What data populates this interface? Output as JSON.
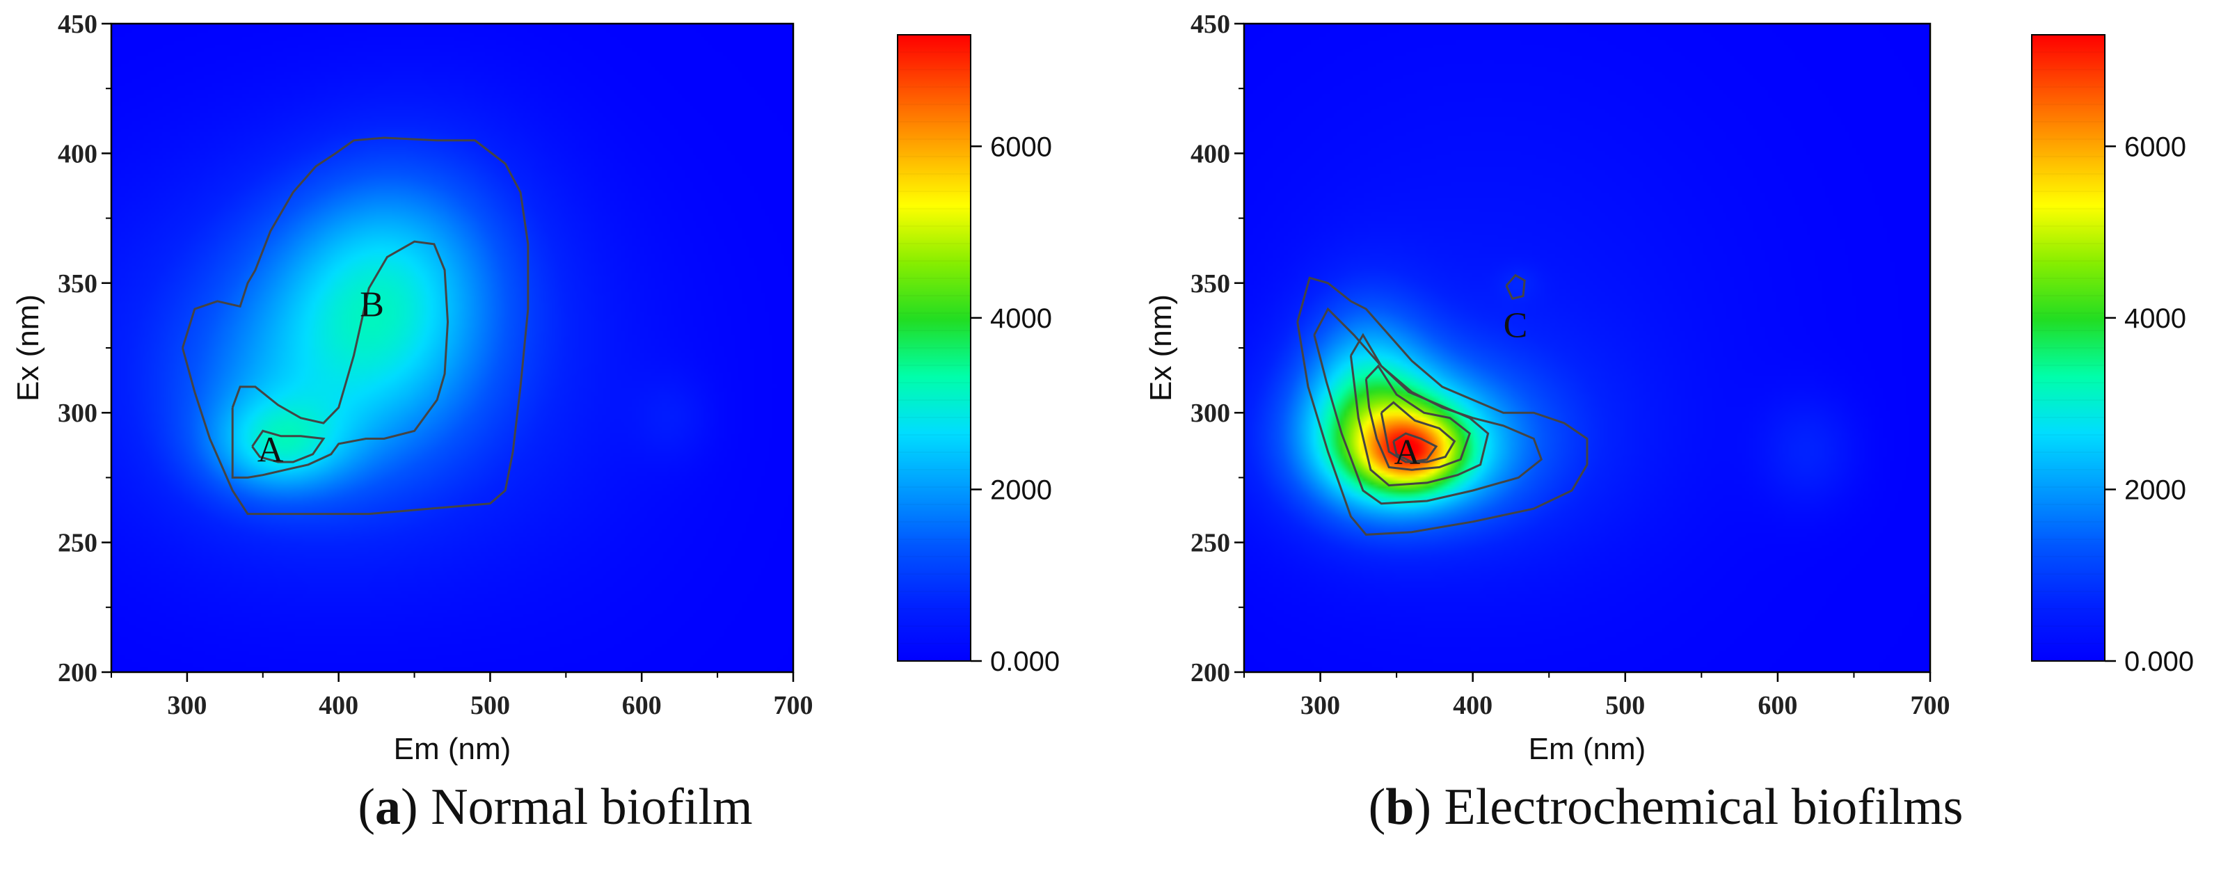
{
  "colors": {
    "scale": [
      "#0000ff",
      "#0022ff",
      "#0055ff",
      "#0099ff",
      "#00ddff",
      "#00ffaa",
      "#22dd22",
      "#88ee00",
      "#ffff00",
      "#ffaa00",
      "#ff5500",
      "#ff0000"
    ],
    "contour": "#444444",
    "frame": "#000000"
  },
  "chart_data": [
    {
      "type": "heatmap",
      "panel_letter": "a",
      "caption_text": "Normal biofilm",
      "xlabel": "Em (nm)",
      "ylabel": "Ex (nm)",
      "xlim": [
        250,
        700
      ],
      "ylim": [
        200,
        450
      ],
      "xticks": [
        "300",
        "400",
        "500",
        "600",
        "700"
      ],
      "yticks": [
        "200",
        "250",
        "300",
        "350",
        "400",
        "450"
      ],
      "colorbar": {
        "range": [
          0,
          7300
        ],
        "ticks": [
          "0.000",
          "2000",
          "4000",
          "6000"
        ],
        "tick_values": [
          0,
          2000,
          4000,
          6000
        ]
      },
      "peaks": [
        {
          "label": "A",
          "em": 360,
          "ex": 285,
          "intensity": 3600,
          "label_em": 355,
          "label_ex": 286
        },
        {
          "label": "B",
          "em": 430,
          "ex": 345,
          "intensity": 2500,
          "label_em": 422,
          "label_ex": 342
        }
      ],
      "regions": [
        {
          "em": 360,
          "ex": 287,
          "sem": 32,
          "sex": 13,
          "amp": 1400
        },
        {
          "em": 410,
          "ex": 325,
          "sem": 55,
          "sex": 38,
          "amp": 900
        },
        {
          "em": 430,
          "ex": 350,
          "sem": 48,
          "sex": 32,
          "amp": 1000
        },
        {
          "em": 390,
          "ex": 320,
          "sem": 105,
          "sex": 52,
          "amp": 1250
        },
        {
          "em": 470,
          "ex": 365,
          "sem": 55,
          "sex": 40,
          "amp": 450
        },
        {
          "em": 340,
          "ex": 300,
          "sem": 40,
          "sex": 25,
          "amp": 400
        },
        {
          "em": 620,
          "ex": 298,
          "sem": 18,
          "sex": 12,
          "amp": 330
        },
        {
          "em": 560,
          "ex": 300,
          "sem": 75,
          "sex": 65,
          "amp": 120
        }
      ],
      "contours": [
        [
          [
            297,
            325
          ],
          [
            305,
            340
          ],
          [
            320,
            343
          ],
          [
            335,
            341
          ],
          [
            340,
            350
          ],
          [
            345,
            355
          ],
          [
            355,
            370
          ],
          [
            370,
            385
          ],
          [
            385,
            395
          ],
          [
            398,
            400
          ],
          [
            410,
            405
          ],
          [
            430,
            406
          ],
          [
            465,
            405
          ],
          [
            490,
            405
          ],
          [
            510,
            396
          ],
          [
            520,
            385
          ],
          [
            525,
            365
          ],
          [
            525,
            340
          ],
          [
            520,
            310
          ],
          [
            515,
            285
          ],
          [
            510,
            270
          ],
          [
            500,
            265
          ],
          [
            460,
            263
          ],
          [
            420,
            261
          ],
          [
            380,
            261
          ],
          [
            340,
            261
          ],
          [
            330,
            270
          ],
          [
            315,
            290
          ],
          [
            305,
            308
          ],
          [
            297,
            325
          ]
        ],
        [
          [
            330,
            302
          ],
          [
            335,
            310
          ],
          [
            345,
            310
          ],
          [
            360,
            303
          ],
          [
            375,
            298
          ],
          [
            390,
            296
          ],
          [
            400,
            302
          ],
          [
            405,
            312
          ],
          [
            410,
            322
          ],
          [
            415,
            335
          ],
          [
            420,
            348
          ],
          [
            432,
            360
          ],
          [
            450,
            366
          ],
          [
            463,
            365
          ],
          [
            470,
            355
          ],
          [
            472,
            335
          ],
          [
            470,
            315
          ],
          [
            465,
            305
          ],
          [
            450,
            293
          ],
          [
            430,
            290
          ],
          [
            418,
            290
          ],
          [
            400,
            288
          ],
          [
            395,
            284
          ],
          [
            380,
            280
          ],
          [
            365,
            278
          ],
          [
            350,
            276
          ],
          [
            340,
            275
          ],
          [
            330,
            275
          ],
          [
            330,
            290
          ],
          [
            330,
            302
          ]
        ],
        [
          [
            343,
            287
          ],
          [
            350,
            293
          ],
          [
            362,
            291
          ],
          [
            375,
            291
          ],
          [
            390,
            290
          ],
          [
            383,
            284
          ],
          [
            370,
            281
          ],
          [
            360,
            281
          ],
          [
            348,
            283
          ],
          [
            343,
            287
          ]
        ]
      ]
    },
    {
      "type": "heatmap",
      "panel_letter": "b",
      "caption_text": "Electrochemical biofilms",
      "xlabel": "Em (nm)",
      "ylabel": "Ex (nm)",
      "xlim": [
        250,
        700
      ],
      "ylim": [
        200,
        450
      ],
      "xticks": [
        "300",
        "400",
        "500",
        "600",
        "700"
      ],
      "yticks": [
        "200",
        "250",
        "300",
        "350",
        "400",
        "450"
      ],
      "colorbar": {
        "range": [
          0,
          7300
        ],
        "ticks": [
          "0.000",
          "2000",
          "4000",
          "6000"
        ],
        "tick_values": [
          0,
          2000,
          4000,
          6000
        ]
      },
      "peaks": [
        {
          "label": "A",
          "em": 360,
          "ex": 285,
          "intensity": 6800,
          "label_em": 357,
          "label_ex": 285
        },
        {
          "label": "C",
          "em": 430,
          "ex": 350,
          "intensity": 900,
          "label_em": 428,
          "label_ex": 334
        }
      ],
      "regions": [
        {
          "em": 360,
          "ex": 285,
          "sem": 22,
          "sex": 10,
          "amp": 2900
        },
        {
          "em": 355,
          "ex": 287,
          "sem": 45,
          "sex": 18,
          "amp": 2400
        },
        {
          "em": 330,
          "ex": 308,
          "sem": 30,
          "sex": 26,
          "amp": 1800
        },
        {
          "em": 375,
          "ex": 290,
          "sem": 75,
          "sex": 28,
          "amp": 1100
        },
        {
          "em": 410,
          "ex": 325,
          "sem": 120,
          "sex": 75,
          "amp": 380
        },
        {
          "em": 620,
          "ex": 285,
          "sem": 22,
          "sex": 15,
          "amp": 580
        },
        {
          "em": 430,
          "ex": 350,
          "sem": 10,
          "sex": 5,
          "amp": 300
        }
      ],
      "contours": [
        [
          [
            285,
            335
          ],
          [
            293,
            352
          ],
          [
            305,
            350
          ],
          [
            320,
            343
          ],
          [
            330,
            340
          ],
          [
            345,
            330
          ],
          [
            360,
            320
          ],
          [
            380,
            310
          ],
          [
            400,
            305
          ],
          [
            420,
            300
          ],
          [
            440,
            300
          ],
          [
            460,
            296
          ],
          [
            475,
            290
          ],
          [
            475,
            280
          ],
          [
            465,
            270
          ],
          [
            440,
            263
          ],
          [
            400,
            258
          ],
          [
            360,
            254
          ],
          [
            330,
            253
          ],
          [
            320,
            260
          ],
          [
            305,
            285
          ],
          [
            292,
            310
          ],
          [
            285,
            335
          ]
        ],
        [
          [
            296,
            330
          ],
          [
            305,
            340
          ],
          [
            322,
            330
          ],
          [
            340,
            318
          ],
          [
            360,
            308
          ],
          [
            380,
            302
          ],
          [
            400,
            298
          ],
          [
            420,
            295
          ],
          [
            440,
            290
          ],
          [
            445,
            282
          ],
          [
            430,
            275
          ],
          [
            400,
            270
          ],
          [
            370,
            266
          ],
          [
            340,
            265
          ],
          [
            328,
            270
          ],
          [
            314,
            292
          ],
          [
            304,
            312
          ],
          [
            296,
            330
          ]
        ],
        [
          [
            320,
            322
          ],
          [
            328,
            330
          ],
          [
            340,
            318
          ],
          [
            358,
            308
          ],
          [
            378,
            303
          ],
          [
            398,
            298
          ],
          [
            410,
            292
          ],
          [
            405,
            280
          ],
          [
            390,
            276
          ],
          [
            370,
            273
          ],
          [
            345,
            272
          ],
          [
            333,
            278
          ],
          [
            325,
            298
          ],
          [
            320,
            322
          ]
        ],
        [
          [
            330,
            313
          ],
          [
            338,
            318
          ],
          [
            350,
            307
          ],
          [
            368,
            300
          ],
          [
            385,
            298
          ],
          [
            398,
            292
          ],
          [
            392,
            282
          ],
          [
            378,
            279
          ],
          [
            360,
            278
          ],
          [
            345,
            279
          ],
          [
            337,
            290
          ],
          [
            332,
            302
          ],
          [
            330,
            313
          ]
        ],
        [
          [
            340,
            300
          ],
          [
            348,
            304
          ],
          [
            362,
            297
          ],
          [
            378,
            294
          ],
          [
            388,
            289
          ],
          [
            382,
            283
          ],
          [
            370,
            281
          ],
          [
            356,
            281
          ],
          [
            345,
            285
          ],
          [
            340,
            300
          ]
        ],
        [
          [
            348,
            289
          ],
          [
            356,
            292
          ],
          [
            366,
            290
          ],
          [
            376,
            287
          ],
          [
            370,
            282
          ],
          [
            360,
            281
          ],
          [
            350,
            284
          ],
          [
            348,
            289
          ]
        ],
        [
          [
            422,
            349
          ],
          [
            428,
            353
          ],
          [
            434,
            351
          ],
          [
            433,
            345
          ],
          [
            426,
            344
          ],
          [
            422,
            349
          ]
        ]
      ]
    }
  ]
}
